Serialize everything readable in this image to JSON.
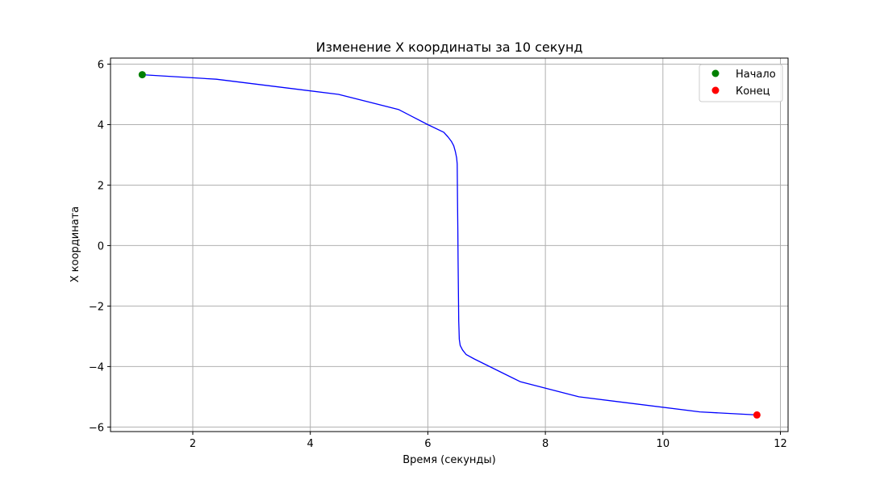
{
  "chart_data": {
    "type": "line",
    "title": "Изменение X координаты за 10 секунд",
    "xlabel": "Время (секунды)",
    "ylabel": "X координата",
    "xlim": [
      0.6,
      12.13
    ],
    "ylim": [
      -6.15,
      6.2
    ],
    "xticks": [
      2,
      4,
      6,
      8,
      10,
      12
    ],
    "yticks": [
      -6,
      -4,
      -2,
      0,
      2,
      4,
      6
    ],
    "grid": true,
    "legend_position": "upper right",
    "series": [
      {
        "color": "#0000ff",
        "x": [
          1.14,
          2.4,
          4.48,
          5.5,
          6.0,
          6.27,
          6.34,
          6.4,
          6.44,
          6.47,
          6.49,
          6.5,
          6.505,
          6.51,
          6.515,
          6.52,
          6.525,
          6.53,
          6.535,
          6.55,
          6.59,
          6.65,
          6.79,
          7.57,
          8.57,
          10.63,
          11.6
        ],
        "y": [
          5.65,
          5.5,
          5.0,
          4.5,
          4.0,
          3.75,
          3.6,
          3.45,
          3.3,
          3.1,
          2.9,
          2.7,
          1.5,
          0.5,
          -0.5,
          -1.5,
          -2.5,
          -2.75,
          -3.1,
          -3.3,
          -3.45,
          -3.6,
          -3.75,
          -4.5,
          -5.0,
          -5.5,
          -5.6
        ]
      }
    ],
    "markers": [
      {
        "label": "Начало",
        "x": 1.14,
        "y": 5.65,
        "color": "#008000"
      },
      {
        "label": "Конец",
        "x": 11.6,
        "y": -5.6,
        "color": "#ff0000"
      }
    ]
  }
}
